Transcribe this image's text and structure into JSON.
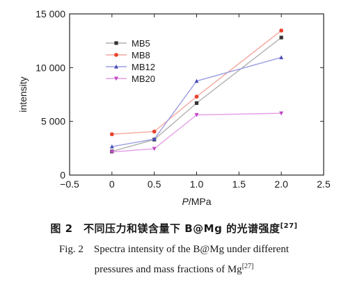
{
  "chart_data": {
    "type": "line",
    "xlabel_italic": "P",
    "xlabel_unit": "/MPa",
    "ylabel": "intensity",
    "xlim": [
      -0.5,
      2.5
    ],
    "ylim": [
      0,
      15000
    ],
    "x_ticks": [
      "−0.5",
      "0",
      "0.5",
      "1.0",
      "1.5",
      "2.0",
      "2.5"
    ],
    "x_tick_values": [
      -0.5,
      0,
      0.5,
      1.0,
      1.5,
      2.0,
      2.5
    ],
    "y_ticks": [
      "0",
      "5 000",
      "10 000",
      "15 000"
    ],
    "y_tick_values": [
      0,
      5000,
      10000,
      15000
    ],
    "grid": false,
    "legend_position": "upper-left",
    "x": [
      0,
      0.5,
      1.0,
      2.0
    ],
    "series": [
      {
        "name": "MB5",
        "color": "#333333",
        "line_color": "#b0b0b0",
        "marker": "square",
        "values": [
          2200,
          3300,
          6700,
          12800
        ]
      },
      {
        "name": "MB8",
        "color": "#e8432c",
        "line_color": "#f4a79e",
        "marker": "circle",
        "values": [
          3800,
          4050,
          7300,
          13450
        ]
      },
      {
        "name": "MB12",
        "color": "#4a4fb8",
        "line_color": "#9c9fe0",
        "marker": "triangle",
        "values": [
          2650,
          3350,
          8750,
          10950
        ]
      },
      {
        "name": "MB20",
        "color": "#c245c8",
        "line_color": "#e39fe6",
        "marker": "triangle-down",
        "values": [
          2150,
          2450,
          5600,
          5750
        ]
      }
    ]
  },
  "caption": {
    "cn_text": "图 2　不同压力和镁含量下 B@Mg 的光谱强度",
    "cn_ref": "[27]",
    "en_line1": "Fig. 2　Spectra intensity of the B@Mg under different",
    "en_line2": "pressures and mass fractions of Mg",
    "en_ref": "[27]"
  }
}
